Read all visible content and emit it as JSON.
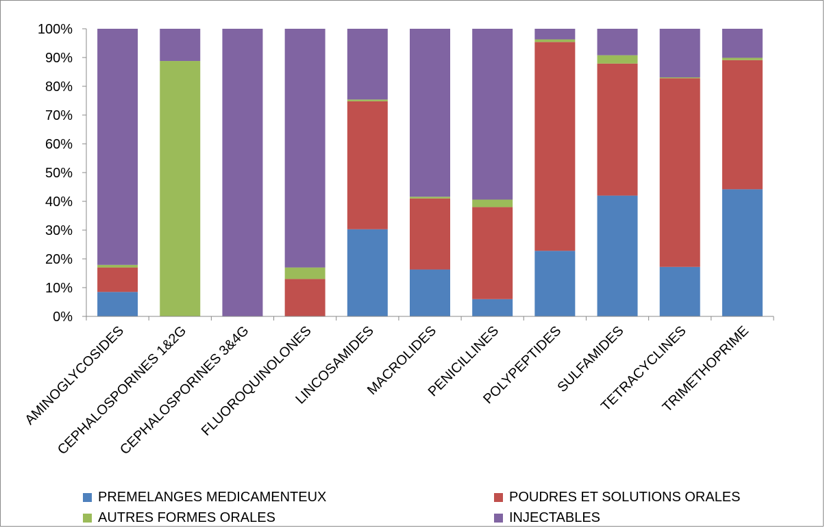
{
  "chart_data": {
    "type": "bar",
    "stacked": true,
    "percent": true,
    "categories": [
      "AMINOGLYCOSIDES",
      "CEPHALOSPORINES 1&2G",
      "CEPHALOSPORINES 3&4G",
      "FLUOROQUINOLONES",
      "LINCOSAMIDES",
      "MACROLIDES",
      "PENICILLINES",
      "POLYPEPTIDES",
      "SULFAMIDES",
      "TETRACYCLINES",
      "TRIMETHOPRIME"
    ],
    "series": [
      {
        "name": "PREMELANGES MEDICAMENTEUX",
        "color": "#4F81BD",
        "values": [
          8.5,
          0,
          0,
          0,
          30.3,
          16.3,
          6.0,
          22.8,
          42.0,
          17.2,
          44.2
        ]
      },
      {
        "name": "POUDRES ET SOLUTIONS ORALES",
        "color": "#C0504D",
        "values": [
          8.5,
          0,
          0,
          13.0,
          44.5,
          24.7,
          32.0,
          72.6,
          45.9,
          65.6,
          44.9
        ]
      },
      {
        "name": "AUTRES FORMES ORALES",
        "color": "#9BBB59",
        "values": [
          0.9,
          88.8,
          0,
          4.0,
          0.6,
          0.6,
          2.6,
          0.9,
          2.9,
          0.3,
          0.8
        ]
      },
      {
        "name": "INJECTABLES",
        "color": "#8064A2",
        "values": [
          82.1,
          11.2,
          100.0,
          83.0,
          24.6,
          58.4,
          59.4,
          3.7,
          9.2,
          16.9,
          10.1
        ]
      }
    ],
    "yticks": [
      "0%",
      "10%",
      "20%",
      "30%",
      "40%",
      "50%",
      "60%",
      "70%",
      "80%",
      "90%",
      "100%"
    ],
    "ylim": [
      0,
      100
    ],
    "legend_position": "bottom",
    "grid": false
  }
}
